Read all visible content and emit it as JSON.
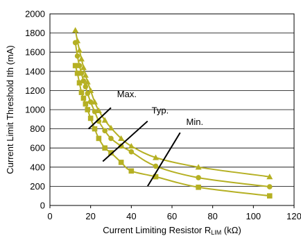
{
  "chart_data": {
    "type": "line",
    "xlabel": {
      "main": "Current Limiting Resistor R",
      "sub": "LIM",
      "unit": " (kΩ)"
    },
    "ylabel": "Current Limit Threshold Ith (mA)",
    "xlim": [
      0,
      120
    ],
    "ylim": [
      0,
      2000
    ],
    "xticks": [
      0,
      20,
      40,
      60,
      80,
      100,
      120
    ],
    "yticks": [
      0,
      200,
      400,
      600,
      800,
      1000,
      1200,
      1400,
      1600,
      1800,
      2000
    ],
    "grid": "horizontal",
    "series": [
      {
        "name": "Max.",
        "marker": "triangle",
        "x": [
          12.5,
          13.5,
          14.5,
          15.5,
          16.5,
          17.5,
          18.5,
          20,
          22,
          24,
          27,
          30,
          35,
          40,
          52,
          73,
          108
        ],
        "y": [
          1830,
          1720,
          1620,
          1530,
          1440,
          1360,
          1290,
          1200,
          1080,
          990,
          890,
          810,
          700,
          620,
          500,
          400,
          300
        ]
      },
      {
        "name": "Typ.",
        "marker": "circle",
        "x": [
          12.5,
          13.5,
          14.5,
          15.5,
          16.5,
          17.5,
          18.5,
          20,
          22,
          24,
          27,
          30,
          35,
          40,
          52,
          73,
          108
        ],
        "y": [
          1700,
          1560,
          1460,
          1380,
          1300,
          1240,
          1170,
          1080,
          980,
          880,
          780,
          700,
          620,
          560,
          410,
          290,
          195
        ]
      },
      {
        "name": "Min.",
        "marker": "square",
        "x": [
          12.5,
          13.5,
          14.5,
          15.5,
          16.5,
          17.5,
          18.5,
          20,
          22,
          24,
          27,
          30,
          35,
          40,
          52,
          73,
          108
        ],
        "y": [
          1460,
          1380,
          1280,
          1180,
          1120,
          1060,
          1000,
          910,
          800,
          700,
          600,
          550,
          450,
          360,
          300,
          190,
          100
        ]
      }
    ],
    "annotations": [
      {
        "text": "Max.",
        "label_at": [
          33,
          1130
        ],
        "arrow_from": [
          30,
          1020
        ],
        "arrow_to": [
          19,
          800
        ]
      },
      {
        "text": "Typ.",
        "label_at": [
          50,
          960
        ],
        "arrow_from": [
          48,
          880
        ],
        "arrow_to": [
          26,
          460
        ]
      },
      {
        "text": "Min.",
        "label_at": [
          67,
          840
        ],
        "arrow_from": [
          64,
          760
        ],
        "arrow_to": [
          48,
          200
        ]
      }
    ],
    "colors": {
      "series": "#b5b023",
      "axis": "#000000",
      "grid": "#000000"
    }
  }
}
